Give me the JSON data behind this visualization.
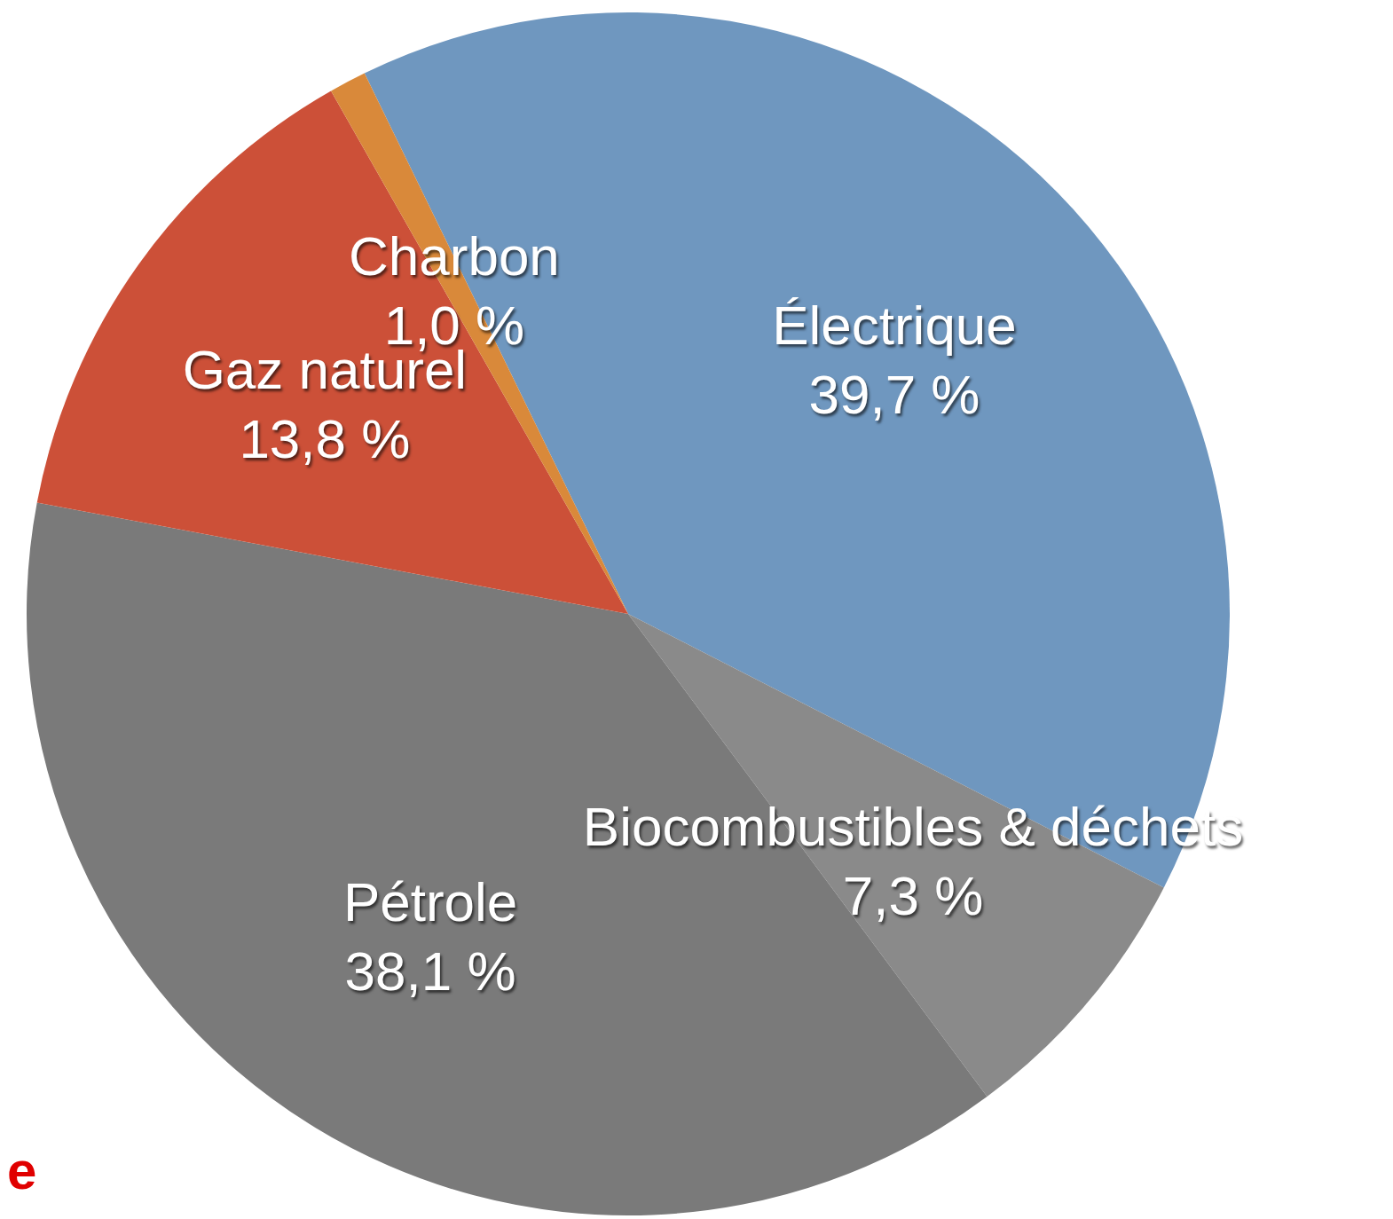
{
  "chart_data": {
    "type": "pie",
    "categories": [
      "Électrique",
      "Biocombustibles & déchets",
      "Pétrole",
      "Gaz naturel",
      "Charbon"
    ],
    "values": [
      39.7,
      7.3,
      38.1,
      13.8,
      1.0
    ],
    "value_labels": [
      "39,7 %",
      "7,3 %",
      "38,1 %",
      "13,8 %",
      "1,0 %"
    ],
    "colors": [
      "#6f97bf",
      "#8a8a8a",
      "#7a7a7a",
      "#cc5038",
      "#d9893a"
    ],
    "annotations": [
      "e"
    ]
  }
}
